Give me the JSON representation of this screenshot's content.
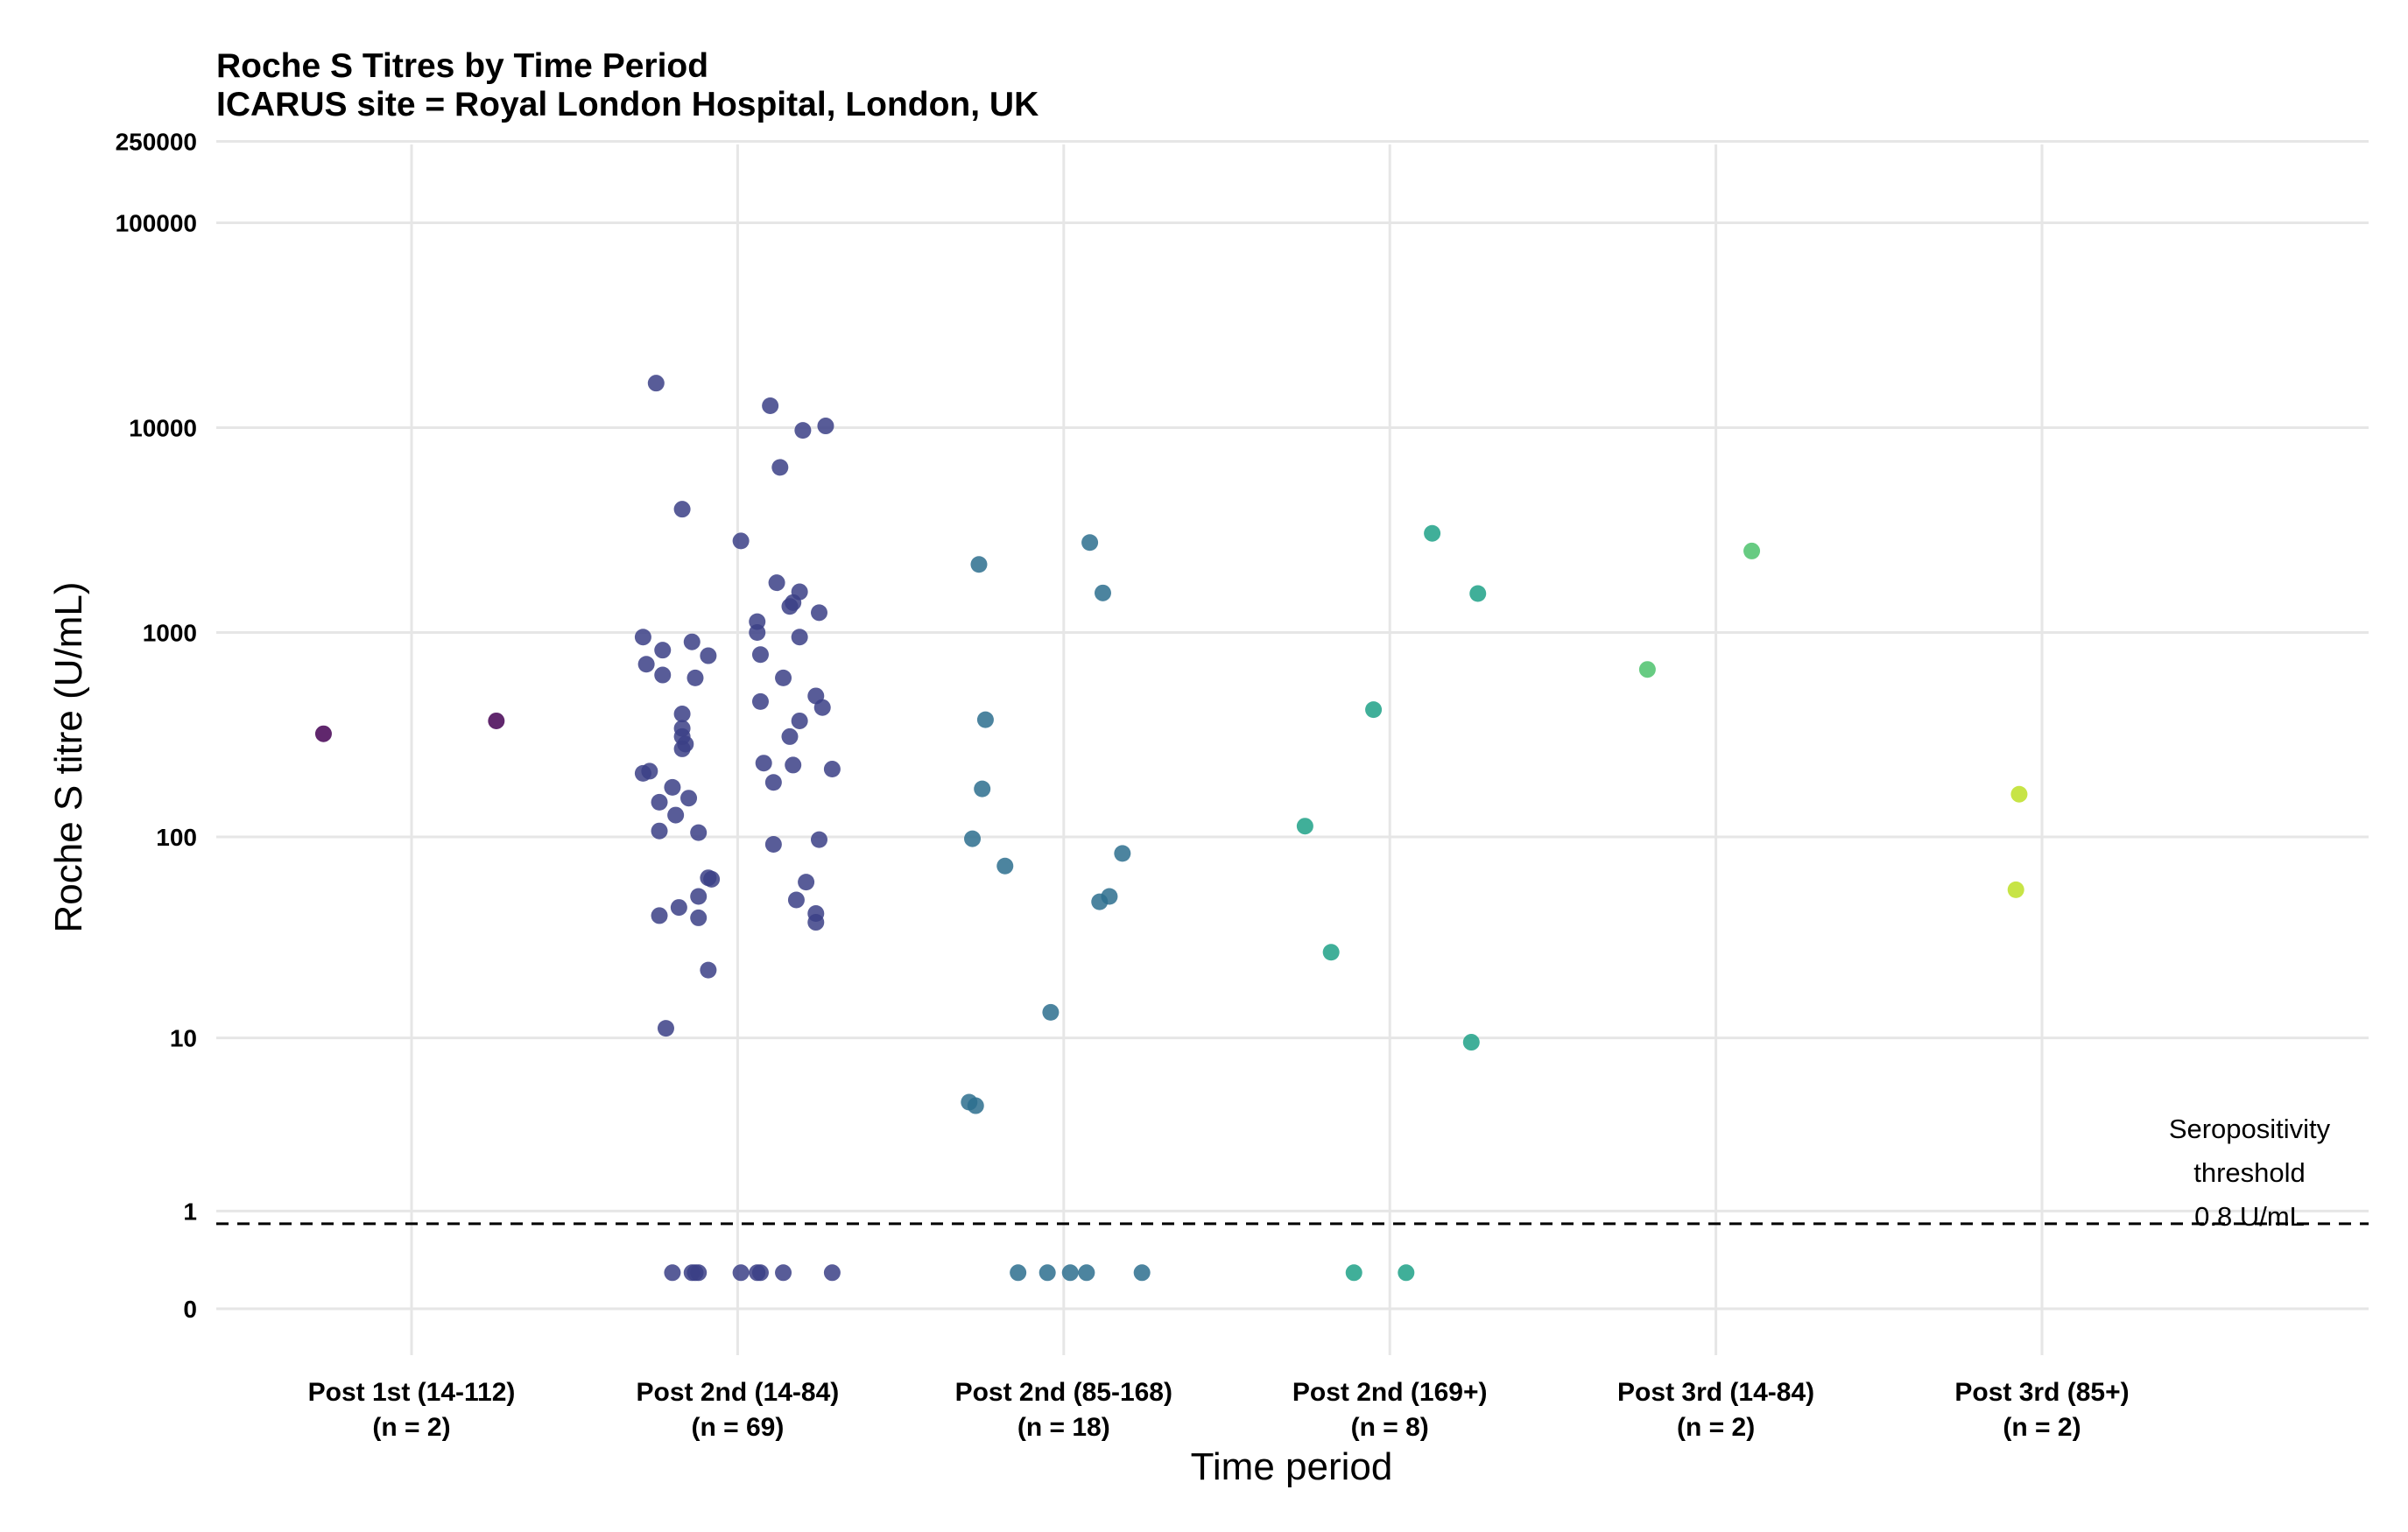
{
  "chart_data": {
    "type": "scatter",
    "title": "Roche S Titres by Time Period",
    "subtitle": "ICARUS site = Royal London Hospital, London, UK",
    "xlabel": "Time period",
    "ylabel": "Roche S titre (U/mL)",
    "y_scale": "pseudo-log",
    "ylim": [
      0,
      350000
    ],
    "y_ticks": [
      {
        "value": 0,
        "label": "0"
      },
      {
        "value": 1,
        "label": "1"
      },
      {
        "value": 10,
        "label": "10"
      },
      {
        "value": 100,
        "label": "100"
      },
      {
        "value": 1000,
        "label": "1000"
      },
      {
        "value": 10000,
        "label": "10000"
      },
      {
        "value": 100000,
        "label": "100000"
      },
      {
        "value": 250000,
        "label": "250000"
      }
    ],
    "grid": true,
    "threshold": {
      "value": 0.8,
      "label_lines": [
        "Seropositivity",
        "threshold",
        "0.8 U/mL"
      ]
    },
    "categories": [
      {
        "label": "Post 1st (14-112)",
        "n_label": "(n = 2)"
      },
      {
        "label": "Post 2nd (14-84)",
        "n_label": "(n = 69)"
      },
      {
        "label": "Post 2nd (85-168)",
        "n_label": "(n = 18)"
      },
      {
        "label": "Post 2nd (169+)",
        "n_label": "(n = 8)"
      },
      {
        "label": "Post 3rd (14-84)",
        "n_label": "(n = 2)"
      },
      {
        "label": "Post 3rd (85+)",
        "n_label": "(n = 2)"
      }
    ],
    "colors": [
      "#440154",
      "#3b3f86",
      "#2d6f8e",
      "#1fa187",
      "#4cc26c",
      "#bddf26"
    ],
    "series": [
      {
        "category": 0,
        "points": [
          [
            -0.27,
            320
          ],
          [
            0.26,
            370
          ]
        ]
      },
      {
        "category": 1,
        "points": [
          [
            -0.25,
            16500
          ],
          [
            0.1,
            12800
          ],
          [
            0.2,
            9700
          ],
          [
            0.27,
            10200
          ],
          [
            0.13,
            6400
          ],
          [
            -0.17,
            4000
          ],
          [
            0.01,
            2800
          ],
          [
            0.12,
            1750
          ],
          [
            0.19,
            1580
          ],
          [
            0.17,
            1400
          ],
          [
            0.16,
            1340
          ],
          [
            0.25,
            1250
          ],
          [
            0.06,
            1130
          ],
          [
            0.06,
            1000
          ],
          [
            -0.29,
            950
          ],
          [
            0.19,
            950
          ],
          [
            -0.14,
            900
          ],
          [
            -0.23,
            820
          ],
          [
            0.07,
            780
          ],
          [
            -0.09,
            770
          ],
          [
            -0.28,
            700
          ],
          [
            -0.23,
            620
          ],
          [
            -0.13,
            600
          ],
          [
            0.14,
            600
          ],
          [
            0.24,
            490
          ],
          [
            -0.17,
            400
          ],
          [
            0.07,
            460
          ],
          [
            0.26,
            430
          ],
          [
            0.19,
            370
          ],
          [
            -0.17,
            340
          ],
          [
            -0.17,
            310
          ],
          [
            0.16,
            310
          ],
          [
            -0.16,
            285
          ],
          [
            -0.17,
            270
          ],
          [
            0.08,
            230
          ],
          [
            0.17,
            225
          ],
          [
            0.29,
            215
          ],
          [
            -0.27,
            210
          ],
          [
            -0.29,
            205
          ],
          [
            0.11,
            185
          ],
          [
            -0.2,
            175
          ],
          [
            -0.15,
            155
          ],
          [
            -0.24,
            148
          ],
          [
            -0.19,
            128
          ],
          [
            -0.24,
            107
          ],
          [
            -0.12,
            105
          ],
          [
            0.11,
            92
          ],
          [
            0.25,
            97
          ],
          [
            -0.09,
            63
          ],
          [
            -0.08,
            62
          ],
          [
            0.21,
            60
          ],
          [
            -0.12,
            51
          ],
          [
            0.18,
            49
          ],
          [
            -0.18,
            45
          ],
          [
            0.24,
            42
          ],
          [
            -0.24,
            41
          ],
          [
            -0.12,
            40
          ],
          [
            0.24,
            38
          ],
          [
            -0.09,
            22
          ],
          [
            -0.22,
            11.2
          ],
          [
            -0.2,
            0.25
          ],
          [
            -0.12,
            0.25
          ],
          [
            -0.13,
            0.25
          ],
          [
            -0.14,
            0.25
          ],
          [
            0.01,
            0.25
          ],
          [
            0.06,
            0.25
          ],
          [
            0.07,
            0.25
          ],
          [
            0.14,
            0.25
          ],
          [
            0.29,
            0.25
          ]
        ]
      },
      {
        "category": 2,
        "points": [
          [
            0.08,
            2750
          ],
          [
            -0.26,
            2150
          ],
          [
            0.12,
            1560
          ],
          [
            -0.24,
            375
          ],
          [
            -0.25,
            172
          ],
          [
            -0.28,
            98
          ],
          [
            0.18,
            83
          ],
          [
            -0.18,
            72
          ],
          [
            0.14,
            51
          ],
          [
            0.11,
            48
          ],
          [
            -0.04,
            13.5
          ],
          [
            -0.29,
            4.6
          ],
          [
            -0.27,
            4.4
          ],
          [
            -0.14,
            0.25
          ],
          [
            -0.05,
            0.25
          ],
          [
            0.02,
            0.25
          ],
          [
            0.07,
            0.25
          ],
          [
            0.24,
            0.25
          ]
        ]
      },
      {
        "category": 3,
        "points": [
          [
            0.13,
            3050
          ],
          [
            0.27,
            1550
          ],
          [
            -0.05,
            420
          ],
          [
            -0.26,
            113
          ],
          [
            -0.18,
            27
          ],
          [
            0.25,
            9.5
          ],
          [
            -0.11,
            0.25
          ],
          [
            0.05,
            0.25
          ]
        ]
      },
      {
        "category": 4,
        "points": [
          [
            0.11,
            2500
          ],
          [
            -0.21,
            660
          ]
        ]
      },
      {
        "category": 5,
        "points": [
          [
            -0.07,
            162
          ],
          [
            -0.08,
            55
          ]
        ]
      }
    ]
  }
}
